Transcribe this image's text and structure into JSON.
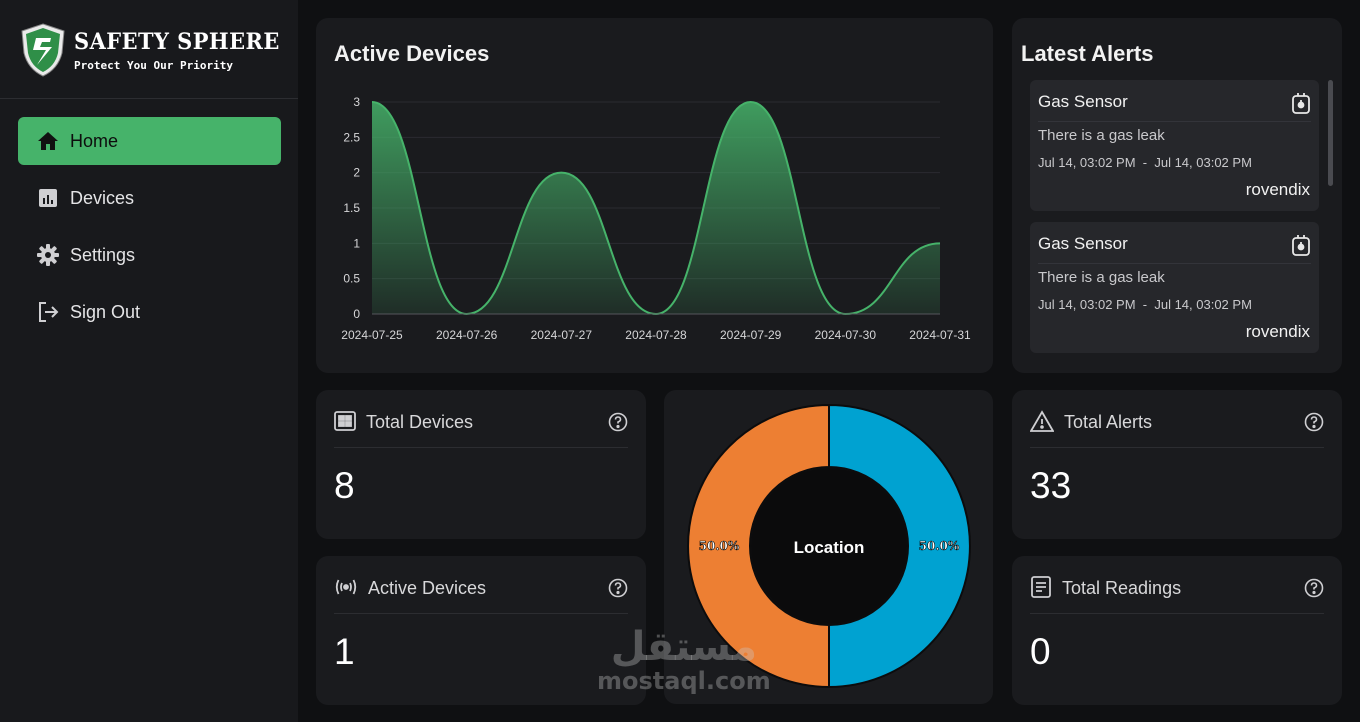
{
  "brand": {
    "name": "SAFETY SPHERE",
    "tagline": "Protect You Our Priority"
  },
  "sidebar": {
    "items": [
      {
        "label": "Home",
        "icon": "home-icon",
        "active": true
      },
      {
        "label": "Devices",
        "icon": "bar-chart-icon",
        "active": false
      },
      {
        "label": "Settings",
        "icon": "gear-icon",
        "active": false
      },
      {
        "label": "Sign Out",
        "icon": "sign-out-icon",
        "active": false
      }
    ]
  },
  "active_devices_chart": {
    "title": "Active Devices",
    "chart_data": {
      "type": "area",
      "x": [
        "2024-07-25",
        "2024-07-26",
        "2024-07-27",
        "2024-07-28",
        "2024-07-29",
        "2024-07-30",
        "2024-07-31"
      ],
      "y": [
        3,
        0,
        2,
        0,
        3,
        0,
        1
      ],
      "yticks": [
        "0",
        "0.5",
        "1",
        "1.5",
        "2",
        "2.5",
        "3"
      ],
      "ylim": [
        0,
        3
      ],
      "grid": true,
      "color": "#46b36a"
    }
  },
  "alerts": {
    "title": "Latest Alerts",
    "items": [
      {
        "type": "Gas Sensor",
        "message": "There is a gas leak",
        "start": "Jul 14, 03:02 PM",
        "end": "Jul 14, 03:02 PM",
        "user": "rovendix"
      },
      {
        "type": "Gas Sensor",
        "message": "There is a gas leak",
        "start": "Jul 14, 03:02 PM",
        "end": "Jul 14, 03:02 PM",
        "user": "rovendix"
      }
    ]
  },
  "stats": {
    "total_devices": {
      "label": "Total Devices",
      "value": "8"
    },
    "active_devices": {
      "label": "Active Devices",
      "value": "1"
    },
    "total_alerts": {
      "label": "Total Alerts",
      "value": "33"
    },
    "total_readings": {
      "label": "Total Readings",
      "value": "0"
    }
  },
  "location_chart": {
    "center_label": "Location",
    "chart_data": {
      "type": "pie",
      "slices": [
        {
          "value": 50.0,
          "label": "50.0%",
          "color": "#00a2d1"
        },
        {
          "value": 50.0,
          "label": "50.0%",
          "color": "#ed7f33"
        }
      ]
    }
  },
  "watermark": {
    "arabic": "مستقل",
    "latin": "mostaql.com"
  }
}
